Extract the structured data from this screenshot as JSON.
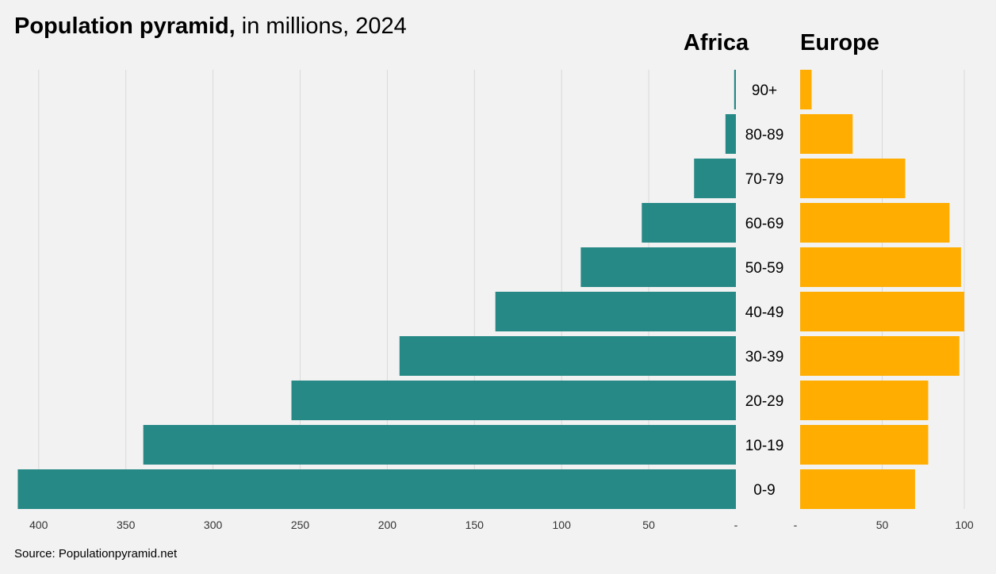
{
  "header": {
    "title_bold": "Population pyramid,",
    "title_rest": " in millions, 2024"
  },
  "footer": {
    "source": "Source: Populationpyramid.net"
  },
  "chart_data": {
    "type": "bar",
    "title": "Population pyramid, in millions, 2024",
    "categories": [
      "90+",
      "80-89",
      "70-79",
      "60-69",
      "50-59",
      "40-49",
      "30-39",
      "20-29",
      "10-19",
      "0-9"
    ],
    "series": [
      {
        "name": "Africa",
        "color": "#268986",
        "values": [
          1,
          6,
          24,
          54,
          89,
          138,
          193,
          255,
          340,
          412
        ]
      },
      {
        "name": "Europe",
        "color": "#ffad00",
        "values": [
          7,
          32,
          64,
          91,
          98,
          100,
          97,
          78,
          78,
          70
        ]
      }
    ],
    "left_axis": {
      "ticks": [
        400,
        350,
        300,
        250,
        200,
        150,
        100,
        50,
        0
      ],
      "tick_labels": [
        "400",
        "350",
        "300",
        "250",
        "200",
        "150",
        "100",
        "50",
        "-"
      ],
      "range": [
        0,
        412
      ]
    },
    "right_axis": {
      "ticks": [
        0,
        50,
        100
      ],
      "tick_labels": [
        "-",
        "50",
        "100"
      ],
      "range": [
        0,
        100
      ]
    },
    "grid": true,
    "grid_color": "#d9d9d9"
  }
}
